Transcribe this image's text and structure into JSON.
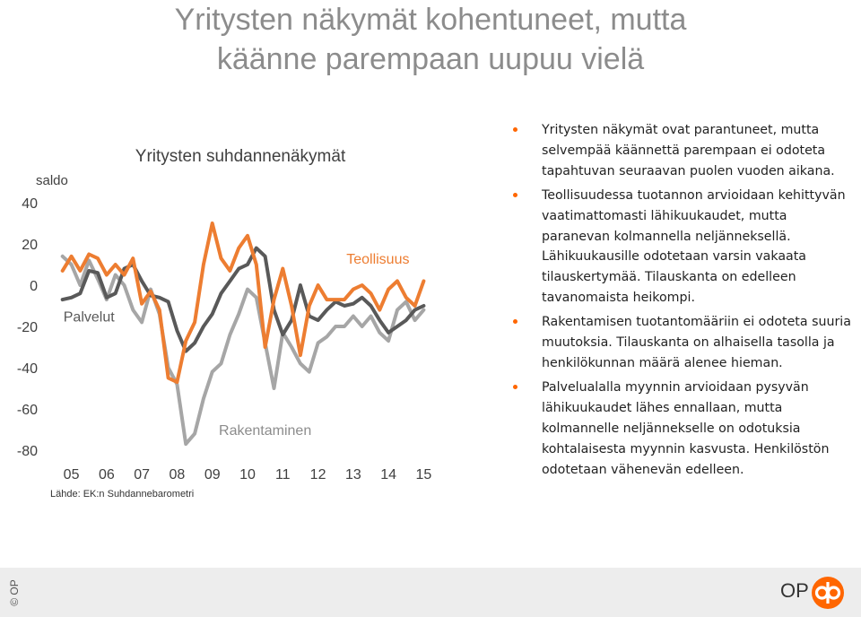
{
  "slide": {
    "title_lines": [
      "Yritysten näkymät kohentuneet, mutta",
      "käänne parempaan uupuu vielä"
    ]
  },
  "bullets": [
    "Yritysten näkymät ovat parantuneet, mutta selvempää käännettä parempaan ei odoteta tapahtuvan seuraavan puolen vuoden aikana.",
    "Teollisuudessa tuotannon arvioidaan kehittyvän vaatimattomasti lähikuukaudet, mutta paranevan kolmannella neljänneksellä. Lähikuukausille odotetaan varsin vakaata tilauskertymää. Tilauskanta on edelleen tavanomaista heikompi.",
    "Rakentamisen tuotantomääriin ei odoteta suuria muutoksia. Tilauskanta on alhaisella tasolla ja henkilökunnan määrä alenee hieman.",
    "Palvelualalla myynnin arvioidaan pysyvän lähikuukaudet lähes ennallaan, mutta kolmannelle neljännekselle on odotuksia kohtalaisesta myynnin kasvusta. Henkilöstön odotetaan vähenevän edelleen."
  ],
  "chart_data": {
    "type": "line",
    "title": "Yritysten suhdannenäkymät",
    "ylabel": "saldo",
    "source": "Lähde: EK:n Suhdannebarometri",
    "ylim": [
      -80,
      40
    ],
    "yticks": [
      40,
      20,
      0,
      -20,
      -40,
      -60,
      -80
    ],
    "xlim": [
      2004.4,
      2015.6
    ],
    "xticks": [
      2005,
      2006,
      2007,
      2008,
      2009,
      2010,
      2011,
      2012,
      2013,
      2014,
      2015
    ],
    "xtick_labels": [
      "05",
      "06",
      "07",
      "08",
      "09",
      "10",
      "11",
      "12",
      "13",
      "14",
      "15"
    ],
    "grid": false,
    "legend": "inline labels",
    "annotations": [
      {
        "text": "Teollisuus",
        "x": 2013.7,
        "y": 13,
        "color": "#ed7d31"
      },
      {
        "text": "Palvelut",
        "x": 2005.5,
        "y": -15,
        "color": "#595959"
      },
      {
        "text": "Rakentaminen",
        "x": 2010.5,
        "y": -70,
        "color": "#8c8c8c"
      }
    ],
    "series": [
      {
        "name": "Teollisuus",
        "color": "#ed7d31",
        "x": [
          2004.75,
          2005.0,
          2005.25,
          2005.5,
          2005.75,
          2006.0,
          2006.25,
          2006.5,
          2006.75,
          2007.0,
          2007.25,
          2007.5,
          2007.75,
          2008.0,
          2008.25,
          2008.5,
          2008.75,
          2009.0,
          2009.25,
          2009.5,
          2009.75,
          2010.0,
          2010.25,
          2010.5,
          2010.75,
          2011.0,
          2011.25,
          2011.5,
          2011.75,
          2012.0,
          2012.25,
          2012.5,
          2012.75,
          2013.0,
          2013.25,
          2013.5,
          2013.75,
          2014.0,
          2014.25,
          2014.5,
          2014.75,
          2015.0
        ],
        "y": [
          7,
          14,
          7,
          15,
          13,
          5,
          10,
          5,
          13,
          -9,
          -3,
          -12,
          -45,
          -47,
          -27,
          -18,
          10,
          30,
          13,
          7,
          18,
          24,
          10,
          -30,
          -7,
          8,
          -10,
          -34,
          -10,
          0,
          -7,
          -7,
          -7,
          -2,
          0,
          -4,
          -12,
          -2,
          2,
          -6,
          -10,
          2
        ]
      },
      {
        "name": "Palvelut",
        "color": "#595959",
        "x": [
          2004.75,
          2005.0,
          2005.25,
          2005.5,
          2005.75,
          2006.0,
          2006.25,
          2006.5,
          2006.75,
          2007.0,
          2007.25,
          2007.5,
          2007.75,
          2008.0,
          2008.25,
          2008.5,
          2008.75,
          2009.0,
          2009.25,
          2009.5,
          2009.75,
          2010.0,
          2010.25,
          2010.5,
          2010.75,
          2011.0,
          2011.25,
          2011.5,
          2011.75,
          2012.0,
          2012.25,
          2012.5,
          2012.75,
          2013.0,
          2013.25,
          2013.5,
          2013.75,
          2014.0,
          2014.25,
          2014.5,
          2014.75,
          2015.0
        ],
        "y": [
          -7,
          -6,
          -4,
          7,
          6,
          -6,
          -4,
          8,
          10,
          2,
          -5,
          -6,
          -8,
          -22,
          -32,
          -28,
          -20,
          -14,
          -4,
          2,
          8,
          10,
          18,
          14,
          -12,
          -24,
          -17,
          0,
          -15,
          -17,
          -12,
          -8,
          -10,
          -9,
          -6,
          -10,
          -17,
          -23,
          -20,
          -17,
          -12,
          -10
        ]
      },
      {
        "name": "Rakentaminen",
        "color": "#a6a6a6",
        "x": [
          2004.75,
          2005.0,
          2005.25,
          2005.5,
          2005.75,
          2006.0,
          2006.25,
          2006.5,
          2006.75,
          2007.0,
          2007.25,
          2007.5,
          2007.75,
          2008.0,
          2008.25,
          2008.5,
          2008.75,
          2009.0,
          2009.25,
          2009.5,
          2009.75,
          2010.0,
          2010.25,
          2010.5,
          2010.75,
          2011.0,
          2011.25,
          2011.5,
          2011.75,
          2012.0,
          2012.25,
          2012.5,
          2012.75,
          2013.0,
          2013.25,
          2013.5,
          2013.75,
          2014.0,
          2014.25,
          2014.5,
          2014.75,
          2015.0
        ],
        "y": [
          14,
          10,
          0,
          12,
          3,
          -7,
          5,
          0,
          -12,
          -18,
          -2,
          -14,
          -40,
          -48,
          -77,
          -72,
          -55,
          -42,
          -38,
          -24,
          -14,
          -2,
          -6,
          -28,
          -50,
          -23,
          -30,
          -38,
          -42,
          -28,
          -25,
          -20,
          -20,
          -15,
          -20,
          -15,
          -23,
          -27,
          -12,
          -8,
          -17,
          -12
        ]
      }
    ]
  }
}
